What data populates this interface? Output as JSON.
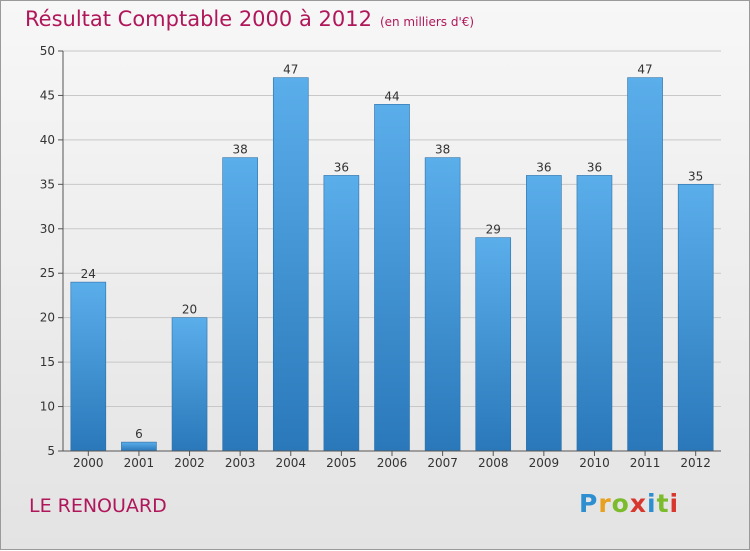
{
  "chart_data": {
    "type": "bar",
    "title": "Résultat Comptable 2000 à 2012",
    "unit_label": "(en milliers d'€)",
    "categories": [
      "2000",
      "2001",
      "2002",
      "2003",
      "2004",
      "2005",
      "2006",
      "2007",
      "2008",
      "2009",
      "2010",
      "2011",
      "2012"
    ],
    "values": [
      24,
      6,
      20,
      38,
      47,
      36,
      44,
      38,
      29,
      36,
      36,
      47,
      35
    ],
    "ylim": [
      5,
      50
    ],
    "yticks": [
      5,
      10,
      15,
      20,
      25,
      30,
      35,
      40,
      45,
      50
    ],
    "grid": true,
    "xlabel": "",
    "ylabel": ""
  },
  "colors": {
    "bar_top": "#5aaeea",
    "bar_bottom": "#2a78ba",
    "title": "#b0175a"
  },
  "location": "LE RENOUARD",
  "logo": {
    "text": "Proxiti"
  }
}
